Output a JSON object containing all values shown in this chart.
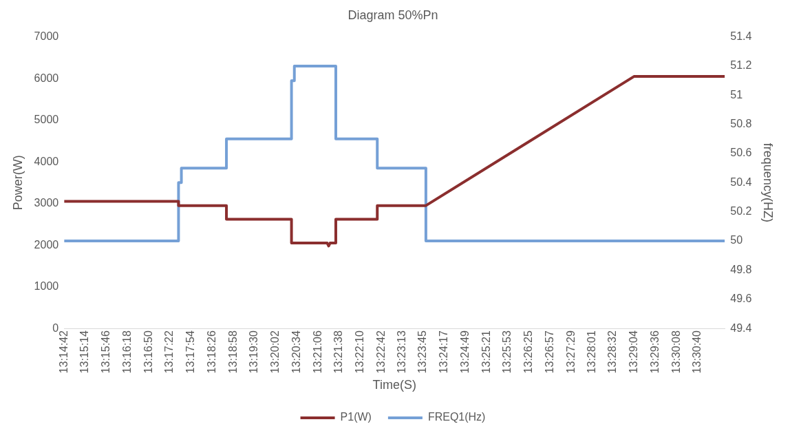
{
  "chart_data": {
    "type": "line",
    "title": "Diagram 50%Pn",
    "xlabel": "Time(S)",
    "ylabel": "Power(W)",
    "y2label": "frequency(HZ)",
    "legend": "bottom",
    "xlim": [
      13.245,
      13.5225
    ],
    "xticks": [
      {
        "value": 13.245,
        "label": "13:14:42"
      },
      {
        "value": 13.253889,
        "label": "13:15:14"
      },
      {
        "value": 13.262778,
        "label": "13:15:46"
      },
      {
        "value": 13.271667,
        "label": "13:16:18"
      },
      {
        "value": 13.280556,
        "label": "13:16:50"
      },
      {
        "value": 13.289444,
        "label": "13:17:22"
      },
      {
        "value": 13.298333,
        "label": "13:17:54"
      },
      {
        "value": 13.307222,
        "label": "13:18:26"
      },
      {
        "value": 13.316111,
        "label": "13:18:58"
      },
      {
        "value": 13.325,
        "label": "13:19:30"
      },
      {
        "value": 13.333889,
        "label": "13:20:02"
      },
      {
        "value": 13.342778,
        "label": "13:20:34"
      },
      {
        "value": 13.351667,
        "label": "13:21:06"
      },
      {
        "value": 13.360556,
        "label": "13:21:38"
      },
      {
        "value": 13.369444,
        "label": "13:22:10"
      },
      {
        "value": 13.378333,
        "label": "13:22:42"
      },
      {
        "value": 13.386944,
        "label": "13:23:13"
      },
      {
        "value": 13.395833,
        "label": "13:23:45"
      },
      {
        "value": 13.404722,
        "label": "13:24:17"
      },
      {
        "value": 13.413611,
        "label": "13:24:49"
      },
      {
        "value": 13.4225,
        "label": "13:25:21"
      },
      {
        "value": 13.431389,
        "label": "13:25:53"
      },
      {
        "value": 13.440278,
        "label": "13:26:25"
      },
      {
        "value": 13.449167,
        "label": "13:26:57"
      },
      {
        "value": 13.458056,
        "label": "13:27:29"
      },
      {
        "value": 13.466944,
        "label": "13:28:01"
      },
      {
        "value": 13.475556,
        "label": "13:28:32"
      },
      {
        "value": 13.484444,
        "label": "13:29:04"
      },
      {
        "value": 13.493333,
        "label": "13:29:36"
      },
      {
        "value": 13.502222,
        "label": "13:30:08"
      },
      {
        "value": 13.511111,
        "label": "13:30:40"
      }
    ],
    "ylim": [
      0,
      7000
    ],
    "yticks": [
      0,
      1000,
      2000,
      3000,
      4000,
      5000,
      6000,
      7000
    ],
    "y2lim": [
      49.4,
      51.4
    ],
    "y2ticks": [
      49.4,
      49.6,
      49.8,
      50,
      50.2,
      50.4,
      50.6,
      50.8,
      51,
      51.2,
      51.4
    ],
    "series": [
      {
        "name": "P1(W)",
        "color": "#8b2e2e",
        "x": [
          13.245,
          13.29305,
          13.29305,
          13.31317,
          13.31317,
          13.3405,
          13.3405,
          13.3555,
          13.35611,
          13.3567,
          13.35911,
          13.35911,
          13.37653,
          13.37653,
          13.39695,
          13.48434,
          13.5225
        ],
        "values": [
          3050,
          3050,
          2950,
          2950,
          2620,
          2620,
          2050,
          2050,
          1980,
          2050,
          2050,
          2620,
          2620,
          2950,
          2950,
          6050,
          6050
        ]
      },
      {
        "name": "FREQ1(Hz)",
        "color": "#75a0d6",
        "axis": "y2",
        "x": [
          13.245,
          13.29305,
          13.29305,
          13.29425,
          13.29425,
          13.31317,
          13.31317,
          13.3405,
          13.3405,
          13.3417,
          13.3417,
          13.35911,
          13.35911,
          13.37653,
          13.37653,
          13.39695,
          13.39695,
          13.5225
        ],
        "values": [
          50,
          50,
          50.4,
          50.4,
          50.5,
          50.5,
          50.7,
          50.7,
          51.1,
          51.1,
          51.2,
          51.2,
          50.7,
          50.7,
          50.5,
          50.5,
          50,
          50
        ]
      }
    ]
  }
}
